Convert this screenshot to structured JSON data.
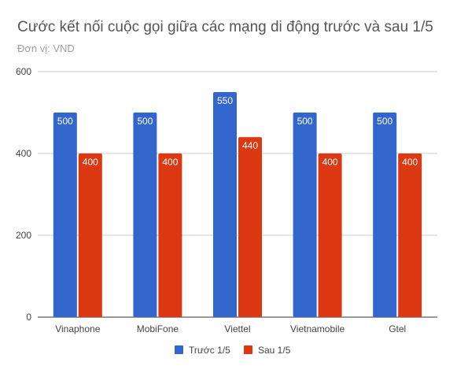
{
  "chart_data": {
    "type": "bar",
    "title": "Cước kết nối cuộc gọi giữa các mạng di động trước và sau 1/5",
    "subtitle": "Đơn vị: VND",
    "categories": [
      "Vinaphone",
      "MobiFone",
      "Viettel",
      "Vietnamobile",
      "Gtel"
    ],
    "series": [
      {
        "name": "Trước 1/5",
        "color": "#3366cc",
        "values": [
          500,
          500,
          550,
          500,
          500
        ]
      },
      {
        "name": "Sau 1/5",
        "color": "#dc3912",
        "values": [
          400,
          400,
          440,
          400,
          400
        ]
      }
    ],
    "yticks": [
      0,
      200,
      400,
      600
    ],
    "ylim": [
      0,
      600
    ],
    "grid": true,
    "legend": "bottom-center",
    "xlabel": "",
    "ylabel": ""
  }
}
